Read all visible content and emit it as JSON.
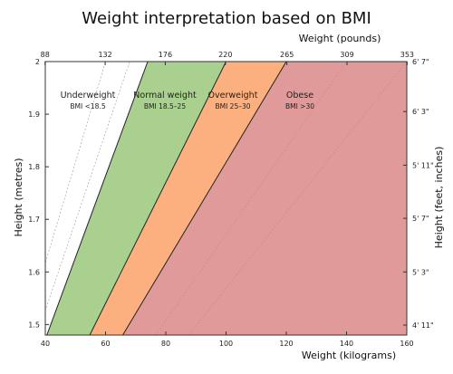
{
  "chart_data": {
    "type": "area",
    "title": "Weight interpretation based on BMI",
    "xlabel": "Weight (kilograms)",
    "ylabel": "Height (metres)",
    "x2label": "Weight (pounds)",
    "y2label": "Height (feet, inches)",
    "xlim": [
      40,
      160
    ],
    "ylim": [
      1.48,
      2.0
    ],
    "x_ticks": [
      40,
      60,
      80,
      100,
      120,
      140,
      160
    ],
    "y_ticks": [
      1.5,
      1.6,
      1.7,
      1.8,
      1.9,
      2
    ],
    "x2_ticks": [
      88,
      132,
      176,
      220,
      265,
      309,
      353
    ],
    "y2_ticks": [
      "4' 11\"",
      "5' 3\"",
      "5' 7\"",
      "5' 11\"",
      "6' 3\"",
      "6' 7\""
    ],
    "y2_tick_heights_m": [
      1.499,
      1.6,
      1.702,
      1.803,
      1.905,
      2.007
    ],
    "guide_lines_bmi": [
      15,
      17,
      35,
      40
    ],
    "regions": [
      {
        "name": "Underweight",
        "range": "BMI <18.5",
        "bmi_min": 0,
        "bmi_max": 18.5,
        "color": "#ffffff"
      },
      {
        "name": "Normal weight",
        "range": "BMI 18.5–25",
        "bmi_min": 18.5,
        "bmi_max": 25,
        "color": "#a9d08e"
      },
      {
        "name": "Overweight",
        "range": "BMI 25–30",
        "bmi_min": 25,
        "bmi_max": 30,
        "color": "#fdb07f"
      },
      {
        "name": "Obese",
        "range": "BMI >30",
        "bmi_min": 30,
        "bmi_max": 999,
        "color": "#e09a9a"
      }
    ],
    "grid": false
  }
}
